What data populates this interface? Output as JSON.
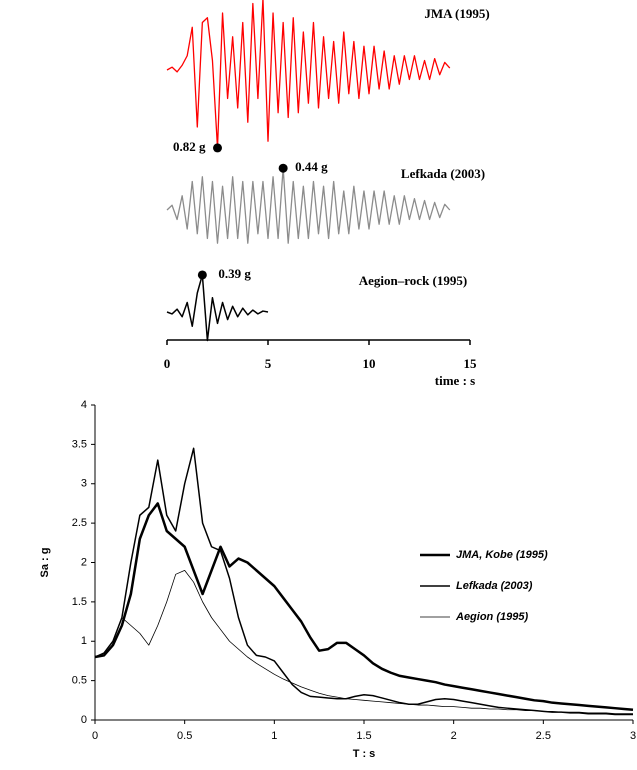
{
  "chart_data": [
    {
      "type": "line",
      "x_label": "time : s",
      "xlim": [
        0,
        15
      ],
      "xticks": [
        0,
        5,
        10,
        15
      ],
      "series": [
        {
          "name": "JMA (1995)",
          "color": "#ff0000",
          "peak_label": "0.82 g",
          "x": [
            0,
            0.25,
            0.5,
            0.75,
            1,
            1.25,
            1.5,
            1.75,
            2,
            2.25,
            2.5,
            2.75,
            3,
            3.25,
            3.5,
            3.75,
            4,
            4.25,
            4.5,
            4.75,
            5,
            5.25,
            5.5,
            5.75,
            6,
            6.25,
            6.5,
            6.75,
            7,
            7.25,
            7.5,
            7.75,
            8,
            8.25,
            8.5,
            8.75,
            9,
            9.25,
            9.5,
            9.75,
            10,
            10.25,
            10.5,
            10.75,
            11,
            11.25,
            11.5,
            11.75,
            12,
            12.25,
            12.5,
            12.75,
            13,
            13.25,
            13.5,
            13.75,
            14
          ],
          "values": [
            0,
            0.03,
            -0.02,
            0.05,
            0.15,
            0.45,
            -0.6,
            0.5,
            0.55,
            0.1,
            -0.82,
            0.6,
            -0.3,
            0.35,
            -0.4,
            0.5,
            -0.55,
            0.7,
            -0.3,
            0.75,
            -0.75,
            0.6,
            -0.45,
            0.5,
            -0.5,
            0.55,
            -0.45,
            0.4,
            -0.35,
            0.5,
            -0.4,
            0.35,
            -0.3,
            0.3,
            -0.35,
            0.4,
            -0.25,
            0.3,
            -0.3,
            0.25,
            -0.25,
            0.25,
            -0.2,
            0.2,
            -0.2,
            0.15,
            -0.15,
            0.15,
            -0.1,
            0.15,
            -0.1,
            0.1,
            -0.1,
            0.12,
            -0.05,
            0.08,
            0.02
          ]
        },
        {
          "name": "Lefkada (2003)",
          "color": "#8c8c8c",
          "peak_label": "0.44 g",
          "x": [
            0,
            0.25,
            0.5,
            0.75,
            1,
            1.25,
            1.5,
            1.75,
            2,
            2.25,
            2.5,
            2.75,
            3,
            3.25,
            3.5,
            3.75,
            4,
            4.25,
            4.5,
            4.75,
            5,
            5.25,
            5.5,
            5.75,
            6,
            6.25,
            6.5,
            6.75,
            7,
            7.25,
            7.5,
            7.75,
            8,
            8.25,
            8.5,
            8.75,
            9,
            9.25,
            9.5,
            9.75,
            10,
            10.25,
            10.5,
            10.75,
            11,
            11.25,
            11.5,
            11.75,
            12,
            12.25,
            12.5,
            12.75,
            13,
            13.25,
            13.5,
            13.75,
            14
          ],
          "values": [
            0,
            0.05,
            -0.1,
            0.15,
            -0.2,
            0.3,
            -0.25,
            0.35,
            -0.3,
            0.3,
            -0.35,
            0.25,
            -0.3,
            0.35,
            -0.3,
            0.3,
            -0.35,
            0.3,
            -0.25,
            0.3,
            -0.3,
            0.35,
            -0.3,
            0.44,
            -0.35,
            0.3,
            -0.3,
            0.25,
            -0.3,
            0.3,
            -0.25,
            0.25,
            -0.3,
            0.3,
            -0.25,
            0.2,
            -0.25,
            0.25,
            -0.2,
            0.2,
            -0.2,
            0.2,
            -0.15,
            0.2,
            -0.15,
            0.15,
            -0.15,
            0.15,
            -0.1,
            0.12,
            -0.1,
            0.1,
            -0.1,
            0.08,
            -0.08,
            0.06,
            0
          ]
        },
        {
          "name": "Aegion–rock (1995)",
          "color": "#000000",
          "peak_label": "0.39 g",
          "x": [
            0,
            0.25,
            0.5,
            0.75,
            1,
            1.25,
            1.5,
            1.75,
            2,
            2.25,
            2.5,
            2.75,
            3,
            3.25,
            3.5,
            3.75,
            4,
            4.25,
            4.5,
            4.75,
            5
          ],
          "values": [
            0,
            -0.02,
            0.03,
            -0.05,
            0.1,
            -0.15,
            0.2,
            0.39,
            -0.3,
            0.15,
            -0.12,
            0.1,
            -0.08,
            0.06,
            -0.05,
            0.04,
            -0.03,
            0.02,
            -0.02,
            0.01,
            0
          ]
        }
      ]
    },
    {
      "type": "line",
      "x_label": "T : s",
      "y_label": "Sa : g",
      "xlim": [
        0,
        3
      ],
      "xticks": [
        0,
        0.5,
        1,
        1.5,
        2,
        2.5,
        3
      ],
      "ylim": [
        0,
        4
      ],
      "yticks": [
        0,
        0.5,
        1,
        1.5,
        2,
        2.5,
        3,
        3.5,
        4
      ],
      "grid": false,
      "legend": "right",
      "x": [
        0,
        0.05,
        0.1,
        0.15,
        0.2,
        0.25,
        0.3,
        0.35,
        0.4,
        0.45,
        0.5,
        0.55,
        0.6,
        0.65,
        0.7,
        0.75,
        0.8,
        0.85,
        0.9,
        0.95,
        1,
        1.05,
        1.1,
        1.15,
        1.2,
        1.25,
        1.3,
        1.35,
        1.4,
        1.45,
        1.5,
        1.55,
        1.6,
        1.65,
        1.7,
        1.75,
        1.8,
        1.85,
        1.9,
        1.95,
        2,
        2.05,
        2.1,
        2.15,
        2.2,
        2.25,
        2.3,
        2.35,
        2.4,
        2.45,
        2.5,
        2.55,
        2.6,
        2.65,
        2.7,
        2.75,
        2.8,
        2.85,
        2.9,
        2.95,
        3
      ],
      "series": [
        {
          "name": "JMA, Kobe (1995)",
          "color": "#000000",
          "width": 2.5,
          "values": [
            0.8,
            0.82,
            0.95,
            1.2,
            1.6,
            2.3,
            2.6,
            2.75,
            2.4,
            2.3,
            2.2,
            1.9,
            1.6,
            1.9,
            2.2,
            1.95,
            2.05,
            2,
            1.9,
            1.8,
            1.7,
            1.55,
            1.4,
            1.25,
            1.05,
            0.88,
            0.9,
            0.98,
            0.98,
            0.9,
            0.82,
            0.72,
            0.65,
            0.6,
            0.56,
            0.54,
            0.52,
            0.5,
            0.48,
            0.45,
            0.43,
            0.41,
            0.39,
            0.37,
            0.35,
            0.33,
            0.31,
            0.29,
            0.27,
            0.25,
            0.24,
            0.22,
            0.21,
            0.2,
            0.19,
            0.18,
            0.17,
            0.16,
            0.15,
            0.14,
            0.13
          ]
        },
        {
          "name": "Lefkada (2003)",
          "color": "#000000",
          "width": 1.5,
          "values": [
            0.8,
            0.85,
            1,
            1.3,
            2,
            2.6,
            2.7,
            3.3,
            2.6,
            2.4,
            3,
            3.45,
            2.5,
            2.2,
            2.15,
            1.8,
            1.3,
            0.95,
            0.82,
            0.8,
            0.75,
            0.6,
            0.45,
            0.35,
            0.3,
            0.29,
            0.28,
            0.27,
            0.27,
            0.3,
            0.32,
            0.31,
            0.28,
            0.25,
            0.22,
            0.2,
            0.2,
            0.23,
            0.26,
            0.27,
            0.26,
            0.24,
            0.22,
            0.2,
            0.18,
            0.16,
            0.15,
            0.14,
            0.13,
            0.12,
            0.11,
            0.1,
            0.1,
            0.09,
            0.09,
            0.08,
            0.08,
            0.08,
            0.07,
            0.07,
            0.07
          ]
        },
        {
          "name": "Aegion (1995)",
          "color": "#000000",
          "width": 0.8,
          "values": [
            0.8,
            0.85,
            1,
            1.3,
            1.2,
            1.1,
            0.95,
            1.2,
            1.5,
            1.85,
            1.9,
            1.75,
            1.5,
            1.3,
            1.15,
            1,
            0.9,
            0.8,
            0.72,
            0.65,
            0.58,
            0.52,
            0.47,
            0.42,
            0.38,
            0.34,
            0.31,
            0.29,
            0.27,
            0.26,
            0.25,
            0.24,
            0.23,
            0.22,
            0.21,
            0.2,
            0.19,
            0.19,
            0.18,
            0.17,
            0.17,
            0.16,
            0.15,
            0.15,
            0.14,
            0.14,
            0.13,
            0.13,
            0.12,
            0.12,
            0.11,
            0.11,
            0.1,
            0.1,
            0.1,
            0.09,
            0.09,
            0.09,
            0.08,
            0.08,
            0.08
          ]
        }
      ]
    }
  ]
}
